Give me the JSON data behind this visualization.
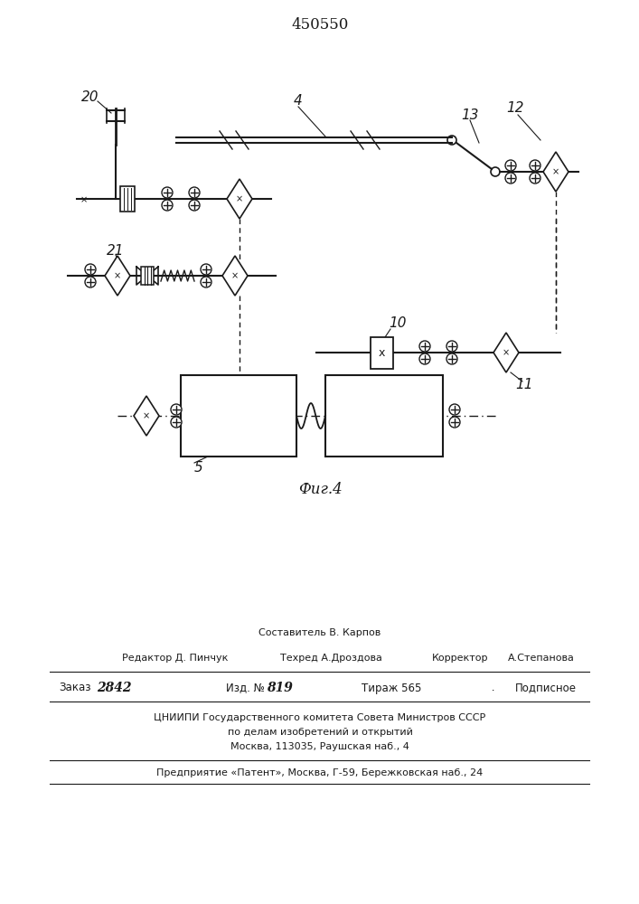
{
  "title": "450550",
  "fig_caption": "Фиг.4",
  "line_color": "#1a1a1a",
  "label_20": "20",
  "label_4": "4",
  "label_13": "13",
  "label_12": "12",
  "label_21": "21",
  "label_10": "10",
  "label_11": "11",
  "label_5": "5",
  "footer_line1": "Составитель В. Карпов",
  "footer_editor": "Редактор Д. Пинчук",
  "footer_techred": "Техред А.Дроздова",
  "footer_corrector": "Корректор",
  "footer_corrector_name": "А.Степанова",
  "footer_order": "Заказ",
  "footer_order_num": "2842",
  "footer_izd": "Изд. №",
  "footer_izd_num": "819",
  "footer_tirazh": "Тираж 565",
  "footer_podp": "Подписное",
  "footer_cniipи1": "ЦНИИПИ Государственного комитета Совета Министров СССР",
  "footer_cniipи2": "по делам изобретений и открытий",
  "footer_cniipи3": "Москва, 113035, Раушская наб., 4",
  "footer_patent": "Предприятие «Патент», Москва, Г-59, Бережковская наб., 24"
}
